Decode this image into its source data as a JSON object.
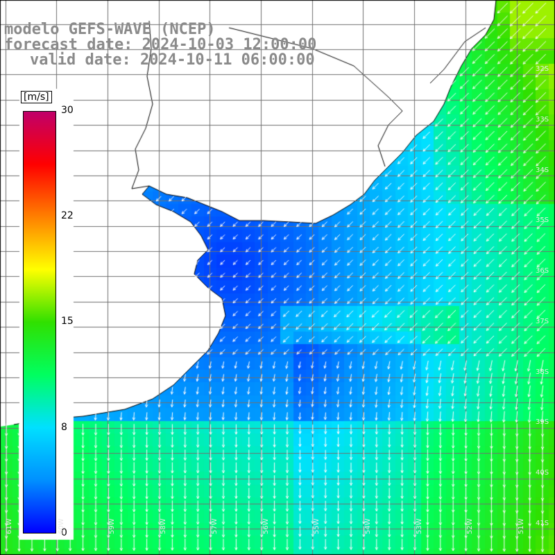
{
  "title": {
    "model": "modelo GEFS-WAVE (NCEP)",
    "forecast": "forecast date: 2024-10-03 12:00:00",
    "valid": "valid date: 2024-10-11 06:00:00"
  },
  "colorbar": {
    "unit": "[m/s]",
    "ticks": [
      "30",
      "22",
      "15",
      "8",
      "0"
    ],
    "tick_values": [
      30,
      22,
      15,
      8,
      0
    ],
    "range": [
      0,
      30
    ],
    "colors": [
      "#0000ff",
      "#0090ff",
      "#00e0ff",
      "#00ff60",
      "#30e000",
      "#ffff00",
      "#ff8000",
      "#ff0000",
      "#c0006a"
    ]
  },
  "map": {
    "lat_labels": [
      "32S",
      "33S",
      "34S",
      "35S",
      "36S",
      "37S",
      "38S",
      "39S",
      "40S",
      "41S"
    ],
    "lon_labels": [
      "61W",
      "60W",
      "59W",
      "58W",
      "57W",
      "56W",
      "55W",
      "54W",
      "53W",
      "52W",
      "51W"
    ],
    "colors": {
      "land": "#ffffff",
      "coast": "#000000",
      "grid": "#707070",
      "arrow": "#ffffff"
    },
    "field": "wind speed and direction"
  }
}
